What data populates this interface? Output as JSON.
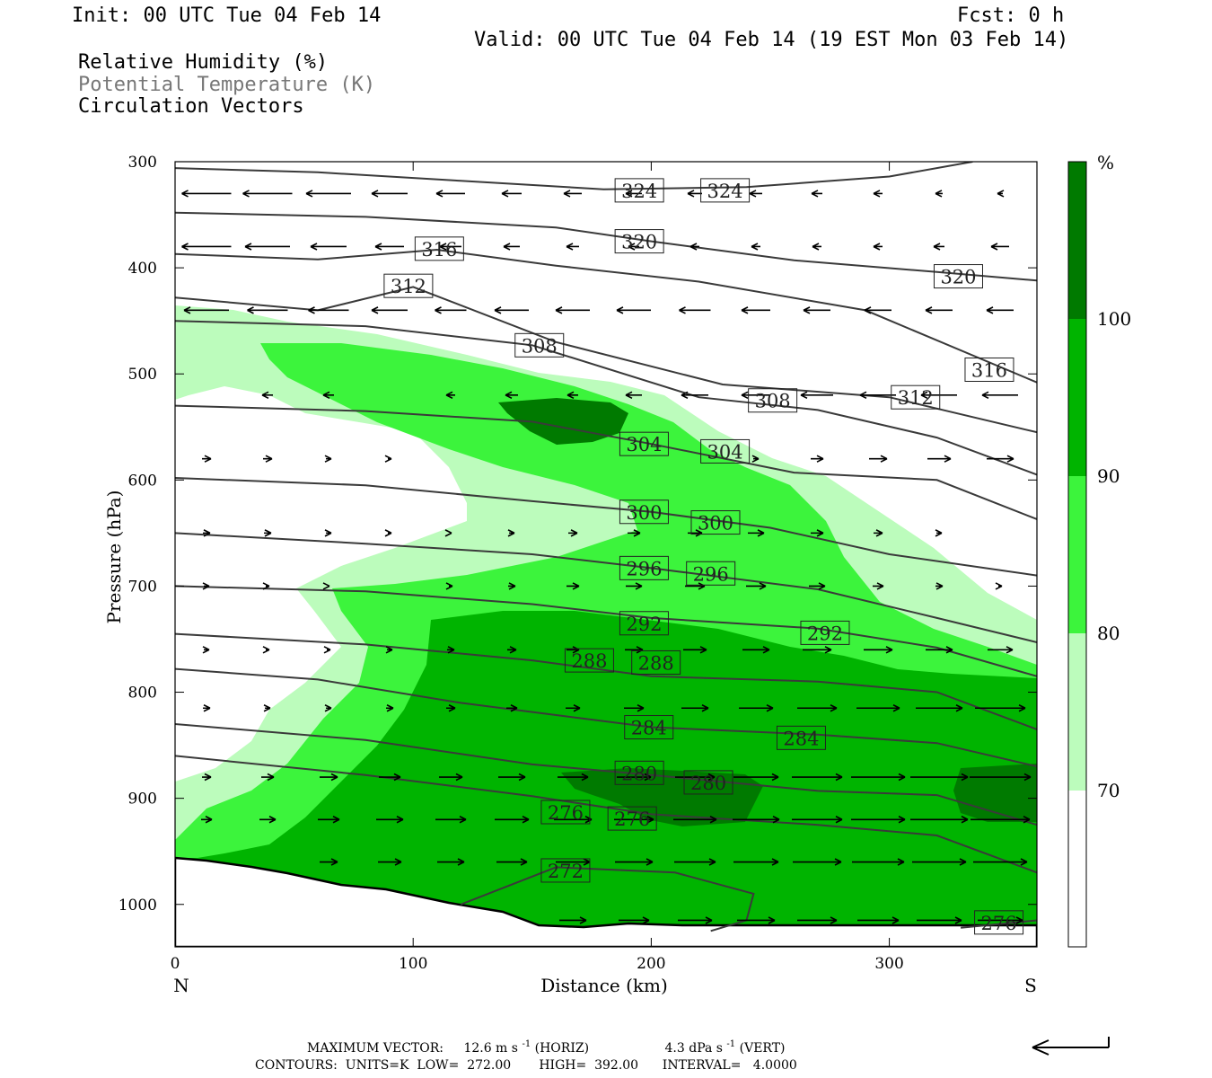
{
  "header": {
    "init": "Init: 00 UTC Tue 04 Feb 14",
    "fcst": "Fcst:    0 h",
    "valid": "Valid: 00 UTC Tue 04 Feb 14 (19 EST Mon 03 Feb 14)",
    "field1": "Relative Humidity (%)",
    "field2": "Potential Temperature (K)",
    "field3": "Circulation Vectors"
  },
  "axes": {
    "ylabel": "Pressure (hPa)",
    "xlabel": "Distance (km)",
    "left_end": "N",
    "right_end": "S",
    "yticks": [
      "300",
      "400",
      "500",
      "600",
      "700",
      "800",
      "900",
      "1000"
    ],
    "xticks": [
      "0",
      "100",
      "200",
      "300"
    ]
  },
  "colorbar": {
    "unit": "%",
    "labels": [
      "100",
      "90",
      "80",
      "70"
    ],
    "colors": [
      "#007a00",
      "#00b400",
      "#3cf43c",
      "#bcfcbc",
      "#ffffff"
    ]
  },
  "footer": {
    "max_vector_label": "MAXIMUM VECTOR:",
    "horiz_value": "12.6 m s",
    "horiz_unit_suffix": " (HORIZ)",
    "vert_value": "4.3 dPa s",
    "vert_unit_suffix": " (VERT)",
    "exponent": "-1",
    "contours_line": "CONTOURS:  UNITS=K  LOW=  272.00       HIGH=  392.00      INTERVAL=   4.0000"
  },
  "chart_data": {
    "type": "cross-section",
    "xlabel": "Distance (km)",
    "ylabel": "Pressure (hPa)",
    "xlim": [
      0,
      362
    ],
    "ylim": [
      300,
      1040
    ],
    "y_inverted": true,
    "rh_levels": [
      70,
      80,
      90,
      100
    ],
    "theta_contours": [
      {
        "label": "324",
        "points": [
          [
            0,
            306
          ],
          [
            60,
            310
          ],
          [
            120,
            318
          ],
          [
            180,
            326
          ],
          [
            240,
            324
          ],
          [
            300,
            314
          ],
          [
            335,
            300
          ]
        ],
        "label_positions": [
          [
            195,
            327
          ],
          [
            231,
            327
          ]
        ]
      },
      {
        "label": "320",
        "points": [
          [
            0,
            348
          ],
          [
            80,
            352
          ],
          [
            160,
            362
          ],
          [
            200,
            375
          ],
          [
            260,
            393
          ],
          [
            320,
            404
          ],
          [
            362,
            412
          ]
        ],
        "label_positions": [
          [
            195,
            375
          ],
          [
            329,
            408
          ]
        ]
      },
      {
        "label": "316",
        "points": [
          [
            0,
            387
          ],
          [
            60,
            392
          ],
          [
            110,
            383
          ],
          [
            160,
            398
          ],
          [
            220,
            413
          ],
          [
            290,
            440
          ],
          [
            362,
            508
          ]
        ],
        "label_positions": [
          [
            111,
            382
          ],
          [
            342,
            496
          ]
        ]
      },
      {
        "label": "312",
        "points": [
          [
            0,
            428
          ],
          [
            60,
            440
          ],
          [
            100,
            418
          ],
          [
            160,
            470
          ],
          [
            230,
            510
          ],
          [
            300,
            522
          ],
          [
            362,
            555
          ]
        ],
        "label_positions": [
          [
            98,
            417
          ],
          [
            311,
            522
          ]
        ]
      },
      {
        "label": "308",
        "points": [
          [
            0,
            450
          ],
          [
            80,
            455
          ],
          [
            150,
            473
          ],
          [
            220,
            522
          ],
          [
            270,
            534
          ],
          [
            320,
            560
          ],
          [
            362,
            595
          ]
        ],
        "label_positions": [
          [
            153,
            473
          ],
          [
            251,
            525
          ]
        ]
      },
      {
        "label": "304",
        "points": [
          [
            0,
            530
          ],
          [
            80,
            535
          ],
          [
            150,
            545
          ],
          [
            200,
            566
          ],
          [
            260,
            593
          ],
          [
            320,
            600
          ],
          [
            362,
            637
          ]
        ],
        "label_positions": [
          [
            197,
            566
          ],
          [
            231,
            573
          ]
        ]
      },
      {
        "label": "300",
        "points": [
          [
            0,
            598
          ],
          [
            80,
            605
          ],
          [
            150,
            620
          ],
          [
            200,
            630
          ],
          [
            250,
            645
          ],
          [
            300,
            670
          ],
          [
            362,
            690
          ]
        ],
        "label_positions": [
          [
            197,
            630
          ],
          [
            227,
            640
          ]
        ]
      },
      {
        "label": "296",
        "points": [
          [
            0,
            650
          ],
          [
            80,
            660
          ],
          [
            150,
            670
          ],
          [
            200,
            683
          ],
          [
            270,
            703
          ],
          [
            320,
            730
          ],
          [
            362,
            753
          ]
        ],
        "label_positions": [
          [
            197,
            683
          ],
          [
            225,
            688
          ]
        ]
      },
      {
        "label": "292",
        "points": [
          [
            0,
            700
          ],
          [
            80,
            705
          ],
          [
            150,
            717
          ],
          [
            200,
            730
          ],
          [
            270,
            740
          ],
          [
            320,
            758
          ],
          [
            362,
            785
          ]
        ],
        "label_positions": [
          [
            197,
            735
          ],
          [
            273,
            744
          ]
        ]
      },
      {
        "label": "288",
        "points": [
          [
            0,
            745
          ],
          [
            80,
            755
          ],
          [
            150,
            770
          ],
          [
            200,
            785
          ],
          [
            270,
            790
          ],
          [
            320,
            800
          ],
          [
            362,
            835
          ]
        ],
        "label_positions": [
          [
            174,
            770
          ],
          [
            202,
            772
          ]
        ]
      },
      {
        "label": "284",
        "points": [
          [
            0,
            778
          ],
          [
            60,
            788
          ],
          [
            120,
            810
          ],
          [
            200,
            833
          ],
          [
            270,
            840
          ],
          [
            320,
            848
          ],
          [
            362,
            870
          ]
        ],
        "label_positions": [
          [
            199,
            833
          ],
          [
            263,
            843
          ]
        ]
      },
      {
        "label": "280",
        "points": [
          [
            0,
            830
          ],
          [
            80,
            845
          ],
          [
            150,
            868
          ],
          [
            200,
            878
          ],
          [
            270,
            893
          ],
          [
            320,
            897
          ],
          [
            362,
            925
          ]
        ],
        "label_positions": [
          [
            195,
            876
          ],
          [
            224,
            885
          ]
        ]
      },
      {
        "label": "276",
        "points": [
          [
            0,
            860
          ],
          [
            80,
            878
          ],
          [
            150,
            898
          ],
          [
            200,
            915
          ],
          [
            270,
            925
          ],
          [
            320,
            935
          ],
          [
            362,
            970
          ]
        ],
        "label_positions": [
          [
            164,
            913
          ],
          [
            192,
            919
          ]
        ]
      },
      {
        "label": "272",
        "points": [
          [
            120,
            1000
          ],
          [
            160,
            965
          ],
          [
            210,
            970
          ],
          [
            243,
            990
          ],
          [
            240,
            1015
          ],
          [
            225,
            1025
          ]
        ],
        "label_positions": [
          [
            164,
            968
          ]
        ]
      },
      {
        "label": "276",
        "points": [
          [
            330,
            1022
          ],
          [
            362,
            1015
          ]
        ],
        "label_positions": [
          [
            346,
            1017
          ]
        ]
      }
    ],
    "vectors_description": "Circulation vectors: westward (pointing N) aloft above ~600 hPa, eastward (pointing S) below ~750 hPa",
    "max_vector": {
      "horiz": 12.6,
      "horiz_units": "m s-1",
      "vert": 4.3,
      "vert_units": "dPa s-1"
    },
    "contours": {
      "units": "K",
      "low": 272.0,
      "high": 392.0,
      "interval": 4.0
    }
  }
}
